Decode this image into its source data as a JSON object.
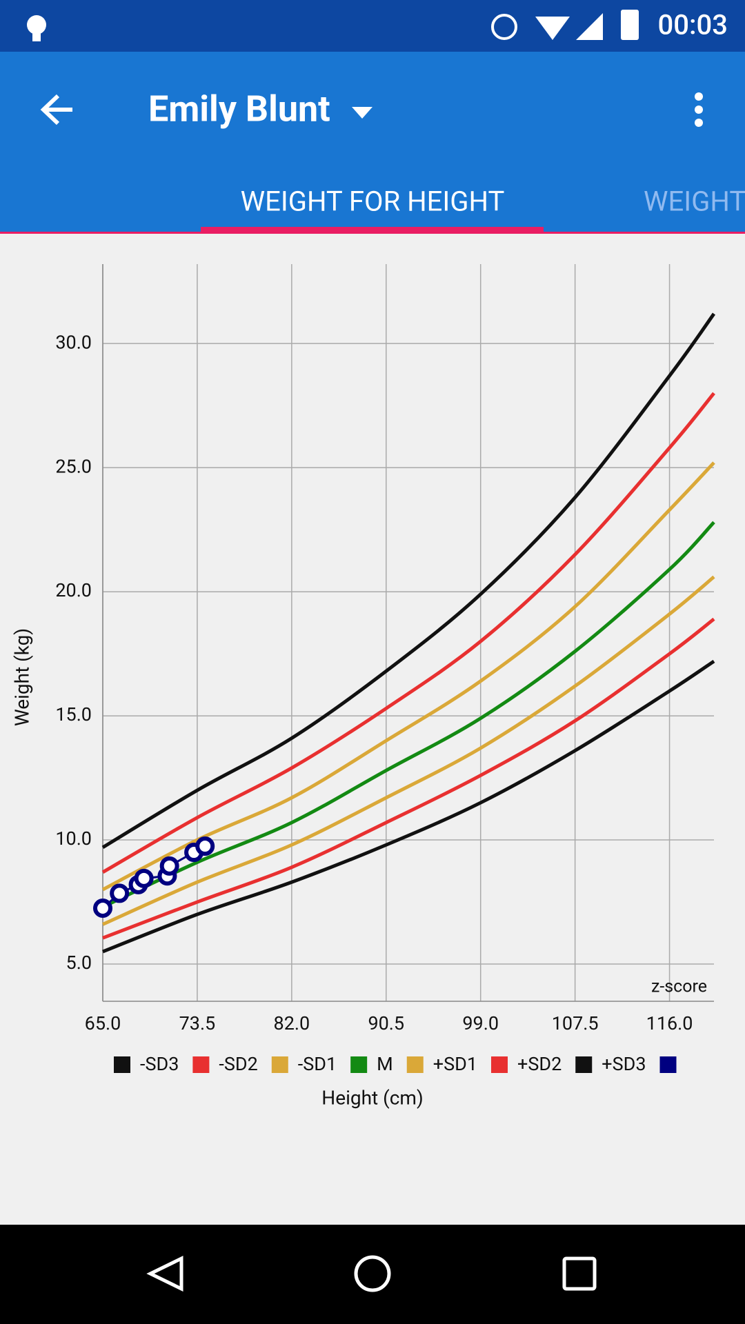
{
  "status_bar": {
    "time": "00:03"
  },
  "app_bar": {
    "title": "Emily Blunt"
  },
  "tabs": [
    "WEIGHT FOR HEIGHT",
    "WEIGHT"
  ],
  "chart_data": {
    "type": "line",
    "x_label": "Height (cm)",
    "y_label": "Weight (kg)",
    "annotation": "z-score",
    "grid": true,
    "xlim": [
      65,
      120
    ],
    "ylim": [
      3.5,
      33.2
    ],
    "xticks": [
      {
        "value": 65,
        "label": "65.0"
      },
      {
        "value": 73.5,
        "label": "73.5"
      },
      {
        "value": 82,
        "label": "82.0"
      },
      {
        "value": 90.5,
        "label": "90.5"
      },
      {
        "value": 99,
        "label": "99.0"
      },
      {
        "value": 107.5,
        "label": "107.5"
      },
      {
        "value": 116,
        "label": "116.0"
      }
    ],
    "yticks": [
      {
        "value": 5,
        "label": "5.0"
      },
      {
        "value": 10,
        "label": "10.0"
      },
      {
        "value": 15,
        "label": "15.0"
      },
      {
        "value": 20,
        "label": "20.0"
      },
      {
        "value": 25,
        "label": "25.0"
      },
      {
        "value": 30,
        "label": "30.0"
      }
    ],
    "x": [
      65,
      73.5,
      82,
      90.5,
      99,
      107.5,
      116,
      120
    ],
    "series": [
      {
        "name": "-SD3",
        "color": "#111111",
        "values": [
          5.5,
          7.0,
          8.3,
          9.8,
          11.5,
          13.6,
          16.0,
          17.2
        ]
      },
      {
        "name": "-SD2",
        "color": "#e83030",
        "values": [
          6.05,
          7.5,
          8.9,
          10.7,
          12.6,
          14.8,
          17.5,
          18.9
        ]
      },
      {
        "name": "-SD1",
        "color": "#daa838",
        "values": [
          6.6,
          8.3,
          9.8,
          11.7,
          13.7,
          16.2,
          19.1,
          20.6
        ]
      },
      {
        "name": "M",
        "color": "#138a13",
        "values": [
          7.3,
          9.1,
          10.7,
          12.8,
          14.9,
          17.6,
          20.9,
          22.8
        ]
      },
      {
        "name": "+SD1",
        "color": "#daa838",
        "values": [
          8.0,
          10.0,
          11.7,
          14.0,
          16.4,
          19.4,
          23.3,
          25.2
        ]
      },
      {
        "name": "+SD2",
        "color": "#e83030",
        "values": [
          8.7,
          10.9,
          12.9,
          15.3,
          18.0,
          21.5,
          25.8,
          28.0
        ]
      },
      {
        "name": "+SD3",
        "color": "#111111",
        "values": [
          9.7,
          12.0,
          14.1,
          16.8,
          19.9,
          23.8,
          28.7,
          31.2
        ]
      },
      {
        "type": "scatter",
        "color": "#000080",
        "x": [
          65,
          66.5,
          68.2,
          68.7,
          70.8,
          71.0,
          73.2,
          74.2
        ],
        "values": [
          7.25,
          7.85,
          8.2,
          8.45,
          8.55,
          8.95,
          9.5,
          9.75
        ]
      }
    ]
  }
}
